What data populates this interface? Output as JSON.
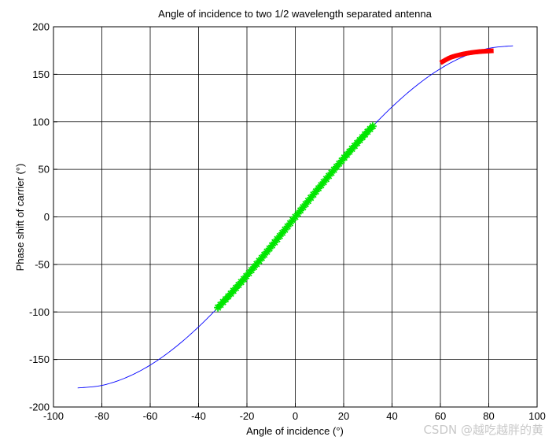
{
  "chart_data": {
    "type": "line",
    "title": "Angle of incidence to two 1/2 wavelength separated antenna",
    "xlabel": "Angle of incidence (°)",
    "ylabel": "Phase shift of carrier (°)",
    "xlim": [
      -100,
      100
    ],
    "ylim": [
      -200,
      200
    ],
    "xticks": [
      -100,
      -80,
      -60,
      -40,
      -20,
      0,
      20,
      40,
      60,
      80,
      100
    ],
    "yticks": [
      -200,
      -150,
      -100,
      -50,
      0,
      50,
      100,
      150,
      200
    ],
    "grid": true,
    "series": [
      {
        "color": "#0000ff",
        "marker": "none",
        "x": [
          -90,
          -80,
          -70,
          -60,
          -50,
          -40,
          -30,
          -20,
          -10,
          0,
          10,
          20,
          30,
          40,
          50,
          60,
          70,
          80,
          90
        ],
        "y": [
          -180,
          -177.3,
          -169.1,
          -155.9,
          -137.9,
          -115.7,
          -90,
          -61.6,
          -31.3,
          0,
          31.3,
          61.6,
          90,
          115.7,
          137.9,
          155.9,
          169.1,
          177.3,
          180
        ]
      },
      {
        "color": "#00e600",
        "marker": "*",
        "x": [
          -32,
          -28,
          -24,
          -20,
          -16,
          -12,
          -8,
          -4,
          0,
          4,
          8,
          12,
          16,
          20,
          24,
          28,
          32
        ],
        "y": [
          -95.4,
          -84.5,
          -73.2,
          -61.6,
          -49.6,
          -37.4,
          -25.1,
          -12.6,
          0,
          12.6,
          25.1,
          37.4,
          49.6,
          61.6,
          73.2,
          84.5,
          95.4
        ]
      },
      {
        "color": "#ff0000",
        "marker": "thick",
        "x": [
          60,
          64,
          68,
          72,
          76,
          80,
          82
        ],
        "y": [
          162,
          167.5,
          170.5,
          172.5,
          173.8,
          174.5,
          174.8
        ]
      }
    ]
  },
  "watermark": "CSDN @越吃越胖的黄"
}
